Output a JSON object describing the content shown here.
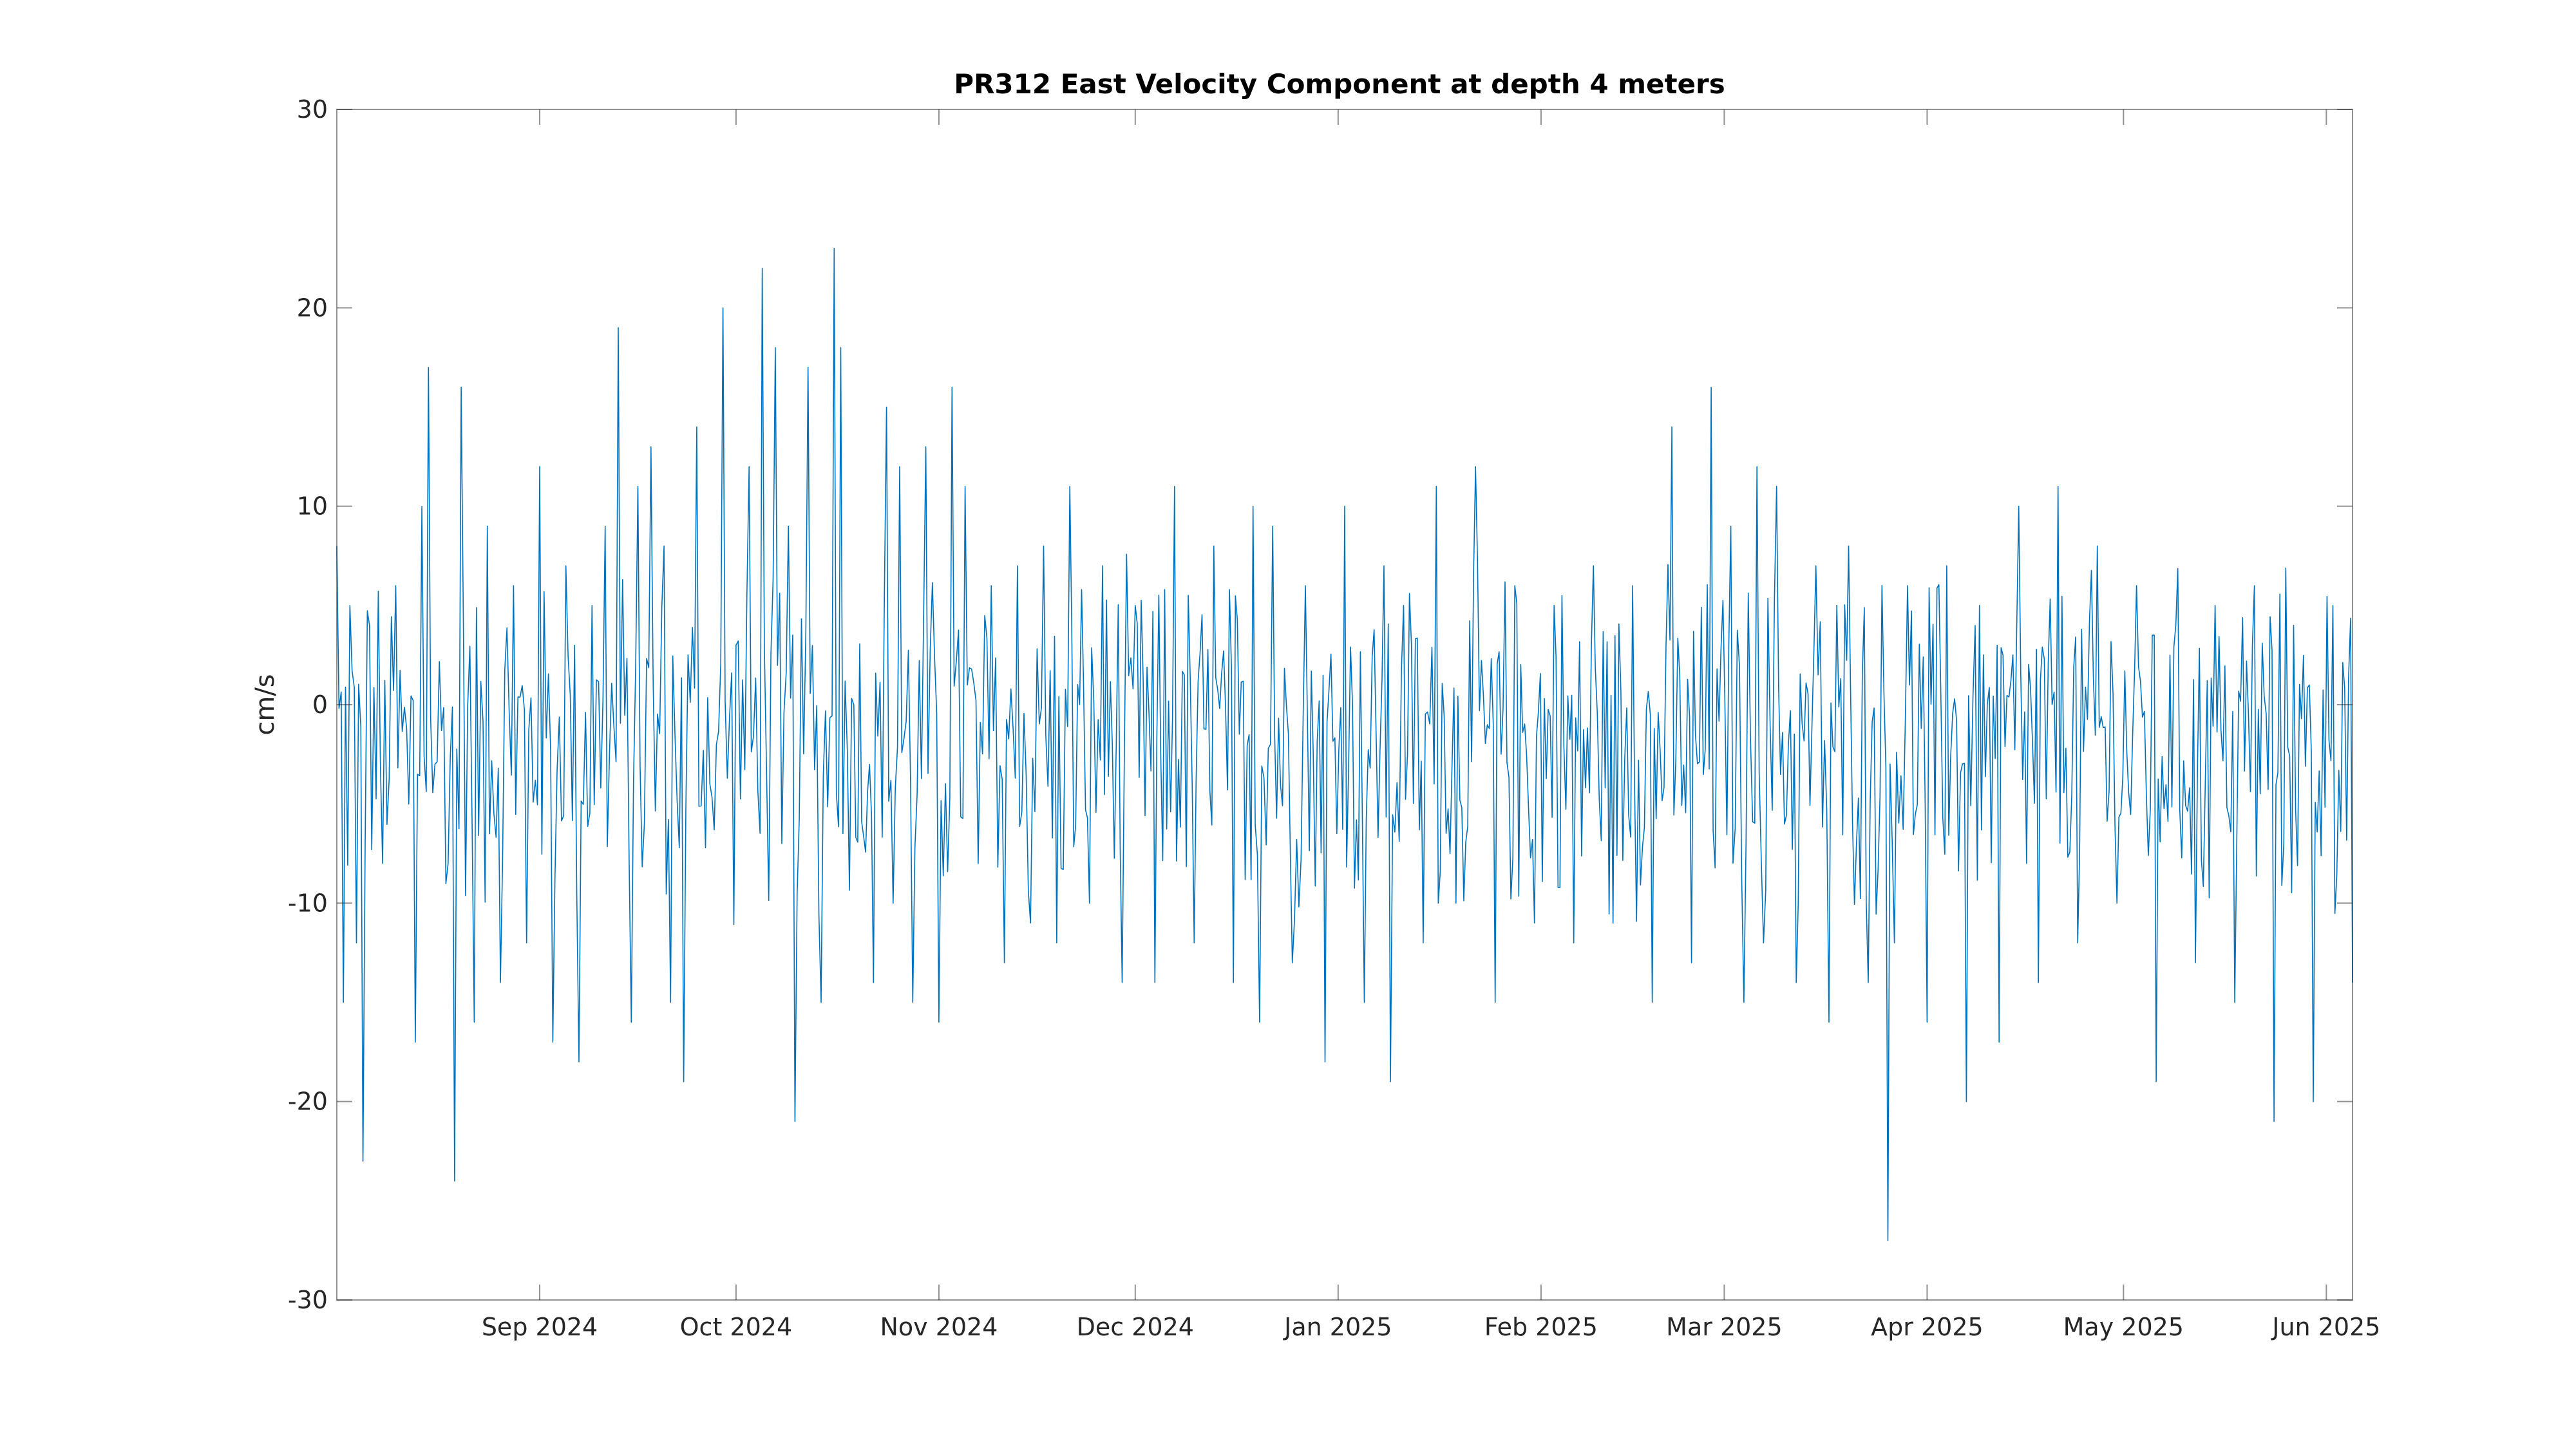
{
  "chart_data": {
    "type": "line",
    "title": "PR312 East Velocity Component at depth 4 meters",
    "xlabel": "",
    "ylabel": "cm/s",
    "x_range": [
      "2024-08-01",
      "2025-06-05"
    ],
    "ylim": [
      -30,
      30
    ],
    "yticks": [
      -30,
      -20,
      -10,
      0,
      10,
      20,
      30
    ],
    "xticks": [
      {
        "date": "2024-09-01",
        "label": "Sep 2024"
      },
      {
        "date": "2024-10-01",
        "label": "Oct 2024"
      },
      {
        "date": "2024-11-01",
        "label": "Nov 2024"
      },
      {
        "date": "2024-12-01",
        "label": "Dec 2024"
      },
      {
        "date": "2025-01-01",
        "label": "Jan 2025"
      },
      {
        "date": "2025-02-01",
        "label": "Feb 2025"
      },
      {
        "date": "2025-03-01",
        "label": "Mar 2025"
      },
      {
        "date": "2025-04-01",
        "label": "Apr 2025"
      },
      {
        "date": "2025-05-01",
        "label": "May 2025"
      },
      {
        "date": "2025-06-01",
        "label": "Jun 2025"
      }
    ],
    "grid": false,
    "line_color": "#0072BD",
    "series": [
      {
        "x": [
          "2024-08-01",
          "2024-08-02",
          "2024-08-03",
          "2024-08-04",
          "2024-08-05",
          "2024-08-06",
          "2024-08-08",
          "2024-08-10",
          "2024-08-12",
          "2024-08-13",
          "2024-08-14",
          "2024-08-15",
          "2024-08-16",
          "2024-08-18",
          "2024-08-19",
          "2024-08-20",
          "2024-08-22",
          "2024-08-24",
          "2024-08-26",
          "2024-08-28",
          "2024-08-30",
          "2024-09-01",
          "2024-09-03",
          "2024-09-05",
          "2024-09-07",
          "2024-09-09",
          "2024-09-11",
          "2024-09-13",
          "2024-09-15",
          "2024-09-16",
          "2024-09-18",
          "2024-09-20",
          "2024-09-21",
          "2024-09-23",
          "2024-09-25",
          "2024-09-27",
          "2024-09-29",
          "2024-10-01",
          "2024-10-03",
          "2024-10-05",
          "2024-10-07",
          "2024-10-08",
          "2024-10-09",
          "2024-10-10",
          "2024-10-12",
          "2024-10-14",
          "2024-10-16",
          "2024-10-17",
          "2024-10-19",
          "2024-10-22",
          "2024-10-24",
          "2024-10-25",
          "2024-10-26",
          "2024-10-28",
          "2024-10-30",
          "2024-11-01",
          "2024-11-03",
          "2024-11-05",
          "2024-11-07",
          "2024-11-09",
          "2024-11-11",
          "2024-11-13",
          "2024-11-15",
          "2024-11-17",
          "2024-11-19",
          "2024-11-21",
          "2024-11-24",
          "2024-11-26",
          "2024-11-29",
          "2024-12-01",
          "2024-12-04",
          "2024-12-07",
          "2024-12-10",
          "2024-12-13",
          "2024-12-16",
          "2024-12-19",
          "2024-12-20",
          "2024-12-22",
          "2024-12-25",
          "2024-12-27",
          "2024-12-30",
          "2025-01-02",
          "2025-01-05",
          "2025-01-08",
          "2025-01-09",
          "2025-01-11",
          "2025-01-14",
          "2025-01-16",
          "2025-01-19",
          "2025-01-22",
          "2025-01-25",
          "2025-01-28",
          "2025-01-31",
          "2025-02-03",
          "2025-02-06",
          "2025-02-09",
          "2025-02-12",
          "2025-02-15",
          "2025-02-18",
          "2025-02-21",
          "2025-02-24",
          "2025-02-27",
          "2025-03-02",
          "2025-03-04",
          "2025-03-06",
          "2025-03-07",
          "2025-03-09",
          "2025-03-12",
          "2025-03-15",
          "2025-03-17",
          "2025-03-20",
          "2025-03-23",
          "2025-03-26",
          "2025-03-27",
          "2025-03-29",
          "2025-04-01",
          "2025-04-04",
          "2025-04-07",
          "2025-04-09",
          "2025-04-12",
          "2025-04-15",
          "2025-04-18",
          "2025-04-21",
          "2025-04-24",
          "2025-04-27",
          "2025-04-30",
          "2025-05-03",
          "2025-05-06",
          "2025-05-09",
          "2025-05-12",
          "2025-05-15",
          "2025-05-18",
          "2025-05-21",
          "2025-05-24",
          "2025-05-27",
          "2025-05-30",
          "2025-06-02",
          "2025-06-05"
        ],
        "y": [
          8,
          -15,
          5,
          -12,
          -23,
          4,
          -8,
          6,
          -5,
          -17,
          10,
          17,
          -3,
          -8,
          -24,
          16,
          -16,
          9,
          -14,
          6,
          -12,
          12,
          -17,
          7,
          -18,
          5,
          9,
          19,
          -16,
          11,
          13,
          8,
          -15,
          -19,
          14,
          -4,
          20,
          3,
          12,
          22,
          18,
          -7,
          9,
          -21,
          17,
          -15,
          23,
          18,
          0,
          -14,
          15,
          -10,
          12,
          -15,
          13,
          -16,
          16,
          11,
          -8,
          6,
          -13,
          7,
          -11,
          8,
          -12,
          11,
          -10,
          7,
          -14,
          5,
          -14,
          11,
          -12,
          8,
          -14,
          10,
          -16,
          9,
          -13,
          6,
          -18,
          10,
          -15,
          7,
          -19,
          5,
          -12,
          11,
          -10,
          12,
          -15,
          6,
          -11,
          5,
          -12,
          7,
          -11,
          6,
          -15,
          14,
          -13,
          16,
          9,
          -15,
          12,
          -12,
          11,
          -14,
          7,
          -16,
          8,
          -14,
          -27,
          -12,
          6,
          -16,
          7,
          -20,
          5,
          -17,
          10,
          -14,
          11,
          -12,
          8,
          -10,
          6,
          -19,
          4,
          -13,
          5,
          -15,
          6,
          -21,
          4,
          -20,
          5,
          -14
        ]
      }
    ]
  }
}
